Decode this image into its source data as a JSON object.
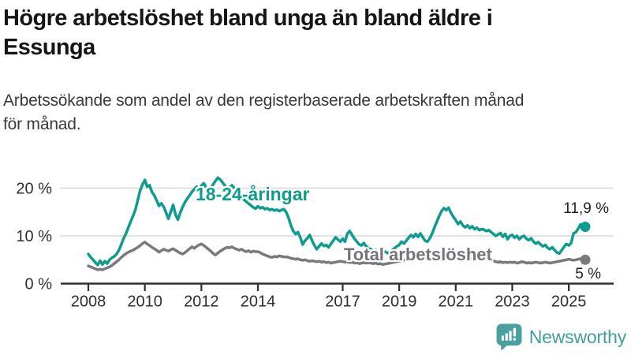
{
  "header": {
    "title_lines": [
      "Högre arbetslöshet bland unga än bland äldre i",
      "Essunga"
    ],
    "subtitle_lines": [
      "Arbetssökande som andel av den registerbaserade arbetskraften månad",
      "för månad."
    ]
  },
  "footer": {
    "brand": "Newsworthy"
  },
  "colors": {
    "young_line": "#0d9c8d",
    "total_line": "#7a7a7e",
    "grid": "#d8d8d8",
    "axis": "#2f2f2f",
    "tick_text": "#2f2f2f",
    "logo": "#419f9d",
    "background": "#ffffff"
  },
  "chart_data": {
    "type": "line",
    "title": "Högre arbetslöshet bland unga än bland äldre i Essunga",
    "subtitle": "Arbetssökande som andel av den registerbaserade arbetskraften månad för månad.",
    "unit": "%",
    "frequency": "monthly",
    "x_start": {
      "year": 2008,
      "month": 1
    },
    "x_end": {
      "year": 2025,
      "month": 8
    },
    "x_tick_years": [
      2008,
      2010,
      2012,
      2014,
      2017,
      2019,
      2021,
      2023,
      2025
    ],
    "y_ticks": [
      {
        "value": 0,
        "label": "0 %"
      },
      {
        "value": 10,
        "label": "10 %"
      },
      {
        "value": 20,
        "label": "20 %"
      }
    ],
    "ylim": [
      0,
      24.5
    ],
    "grid": true,
    "legend_position": "inline-labels",
    "series": [
      {
        "name": "18-24-åringar",
        "color": "#0d9c8d",
        "end_label": "11,9 %",
        "last_value": 11.9,
        "values": [
          6.2,
          5.5,
          5.0,
          4.4,
          3.9,
          4.8,
          4.0,
          4.7,
          4.2,
          5.0,
          5.4,
          5.7,
          6.2,
          7.0,
          8.2,
          9.5,
          10.5,
          11.8,
          13.0,
          14.2,
          15.5,
          17.5,
          19.5,
          20.8,
          21.7,
          20.3,
          20.6,
          19.2,
          18.5,
          17.4,
          16.3,
          16.8,
          16.1,
          14.9,
          13.6,
          15.0,
          16.5,
          14.5,
          13.4,
          14.8,
          16.0,
          17.0,
          17.8,
          18.5,
          19.2,
          19.8,
          20.3,
          19.8,
          20.5,
          21.0,
          20.2,
          19.5,
          20.0,
          20.8,
          21.5,
          22.2,
          21.8,
          21.2,
          20.5,
          19.8,
          20.2,
          20.6,
          20.0,
          19.4,
          18.8,
          18.2,
          17.6,
          17.2,
          16.8,
          16.4,
          16.0,
          15.7,
          16.2,
          15.8,
          16.0,
          15.6,
          15.8,
          15.4,
          15.6,
          15.3,
          15.5,
          15.2,
          15.4,
          15.6,
          15.0,
          13.8,
          12.2,
          11.0,
          10.4,
          10.8,
          9.7,
          8.2,
          9.0,
          9.5,
          10.2,
          9.0,
          8.0,
          7.2,
          7.8,
          8.4,
          7.9,
          8.1,
          7.6,
          8.3,
          9.0,
          9.7,
          9.2,
          8.8,
          9.4,
          8.8,
          10.5,
          11.0,
          10.2,
          9.4,
          8.8,
          8.2,
          8.0,
          8.5,
          7.8,
          7.4,
          7.2,
          6.8,
          7.0,
          6.6,
          6.8,
          6.5,
          6.7,
          6.4,
          6.6,
          7.0,
          7.4,
          7.8,
          8.1,
          8.8,
          8.4,
          9.0,
          9.6,
          10.2,
          9.7,
          10.4,
          9.8,
          10.5,
          9.7,
          9.0,
          8.8,
          9.5,
          10.5,
          11.8,
          13.0,
          14.2,
          15.2,
          15.8,
          15.4,
          15.9,
          14.8,
          14.0,
          13.3,
          12.5,
          13.0,
          12.2,
          11.8,
          12.2,
          11.6,
          12.0,
          11.4,
          11.7,
          11.2,
          11.4,
          11.3,
          11.0,
          11.2,
          10.8,
          10.4,
          10.0,
          10.3,
          10.6,
          9.8,
          10.4,
          9.3,
          10.0,
          10.2,
          9.6,
          10.0,
          9.3,
          9.8,
          10.0,
          9.4,
          9.1,
          9.5,
          8.8,
          8.4,
          8.7,
          8.2,
          7.8,
          8.1,
          7.5,
          7.2,
          7.6,
          7.0,
          6.5,
          6.3,
          7.0,
          7.7,
          8.3,
          8.0,
          8.5,
          10.5,
          10.8,
          11.5,
          12.4,
          11.7,
          11.9
        ]
      },
      {
        "name": "Total arbetslöshet",
        "color": "#7a7a7e",
        "end_label": "5 %",
        "last_value": 5.0,
        "values": [
          3.7,
          3.5,
          3.3,
          3.1,
          2.9,
          3.0,
          2.9,
          3.1,
          3.3,
          3.5,
          3.8,
          4.2,
          4.6,
          5.0,
          5.5,
          5.9,
          6.3,
          6.6,
          6.8,
          7.0,
          7.3,
          7.6,
          8.0,
          8.4,
          8.7,
          8.3,
          8.0,
          7.6,
          7.3,
          7.0,
          6.6,
          6.9,
          7.2,
          7.0,
          6.8,
          7.1,
          7.3,
          7.0,
          6.7,
          6.4,
          6.2,
          6.5,
          6.9,
          7.3,
          7.7,
          7.4,
          7.8,
          8.1,
          8.3,
          8.0,
          7.6,
          7.2,
          6.8,
          6.3,
          6.0,
          6.4,
          6.8,
          7.1,
          7.4,
          7.6,
          7.5,
          7.7,
          7.4,
          7.2,
          7.0,
          7.2,
          6.9,
          6.7,
          6.9,
          6.6,
          6.8,
          6.7,
          6.7,
          6.5,
          6.2,
          6.0,
          5.8,
          5.6,
          5.5,
          5.7,
          5.6,
          5.8,
          5.7,
          5.6,
          5.6,
          5.5,
          5.3,
          5.2,
          5.1,
          5.2,
          5.0,
          4.9,
          5.0,
          4.8,
          4.7,
          4.8,
          4.7,
          4.6,
          4.7,
          4.5,
          4.6,
          4.4,
          4.5,
          4.3,
          4.4,
          4.5,
          4.6,
          4.7,
          4.6,
          4.5,
          4.6,
          4.4,
          4.5,
          4.3,
          4.4,
          4.2,
          4.3,
          4.4,
          4.3,
          4.4,
          4.3,
          4.2,
          4.3,
          4.1,
          4.2,
          4.0,
          4.1,
          4.2,
          4.3,
          4.4,
          4.5,
          4.6,
          4.7,
          4.8,
          4.9,
          5.0,
          5.1,
          5.2,
          5.3,
          5.4,
          5.3,
          5.4,
          5.5,
          5.6,
          5.7,
          5.8,
          6.0,
          6.3,
          6.5,
          6.6,
          6.5,
          6.4,
          6.2,
          6.0,
          5.9,
          5.8,
          5.8,
          5.7,
          5.6,
          5.5,
          5.4,
          5.3,
          5.2,
          5.3,
          5.2,
          5.1,
          5.2,
          5.3,
          5.4,
          5.3,
          5.2,
          5.0,
          4.8,
          4.6,
          4.5,
          4.6,
          4.4,
          4.5,
          4.4,
          4.5,
          4.4,
          4.5,
          4.3,
          4.4,
          4.6,
          4.5,
          4.3,
          4.4,
          4.3,
          4.4,
          4.5,
          4.4,
          4.3,
          4.4,
          4.5,
          4.4,
          4.3,
          4.4,
          4.5,
          4.6,
          4.7,
          4.8,
          4.9,
          5.0,
          5.1,
          5.0,
          4.9,
          5.0,
          5.1,
          5.2,
          5.1,
          5.0
        ]
      }
    ]
  }
}
